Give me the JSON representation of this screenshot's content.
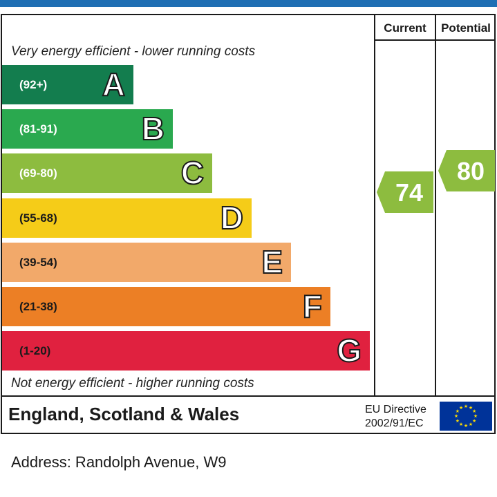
{
  "chart_data": {
    "type": "bar",
    "columns": {
      "current": "Current",
      "potential": "Potential"
    },
    "top_caption": "Very energy efficient - lower running costs",
    "bottom_caption": "Not energy efficient - higher running costs",
    "bands": [
      {
        "range": "(92+)",
        "letter": "A",
        "color": "#137d4e"
      },
      {
        "range": "(81-91)",
        "letter": "B",
        "color": "#2aa94f"
      },
      {
        "range": "(69-80)",
        "letter": "C",
        "color": "#8dbc3f"
      },
      {
        "range": "(55-68)",
        "letter": "D",
        "color": "#f5cc18"
      },
      {
        "range": "(39-54)",
        "letter": "E",
        "color": "#f2a96a"
      },
      {
        "range": "(21-38)",
        "letter": "F",
        "color": "#ec7f25"
      },
      {
        "range": "(1-20)",
        "letter": "G",
        "color": "#e0213f"
      }
    ],
    "current": {
      "value": 74,
      "color": "#8dbc3f"
    },
    "potential": {
      "value": 80,
      "color": "#8dbc3f"
    }
  },
  "footer": {
    "region": "England, Scotland & Wales",
    "directive_line1": "EU Directive",
    "directive_line2": "2002/91/EC",
    "flag_color": "#003399",
    "star_color": "#ffdd00"
  },
  "address": "Address: Randolph Avenue, W9"
}
